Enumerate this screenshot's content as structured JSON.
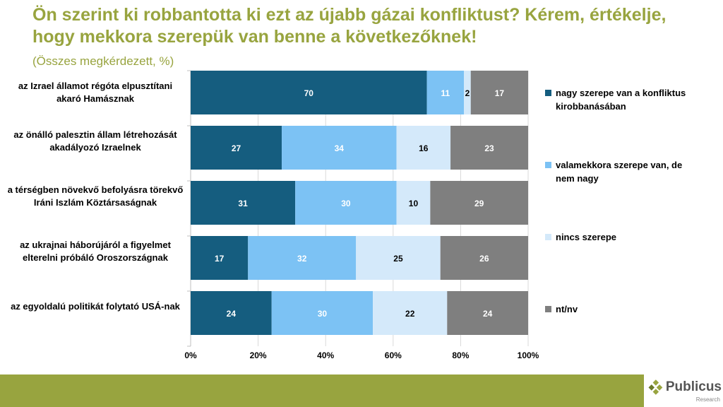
{
  "title": "Ön szerint ki robbantotta ki ezt az újabb gázai konfliktust? Kérem, értékelje, hogy mekkora szerepük van benne a következőknek!",
  "subtitle": "(Összes megkérdezett, %)",
  "chart_data": {
    "type": "bar",
    "stacked": true,
    "orientation": "horizontal",
    "categories": [
      "az Izrael államot régóta elpusztítani akaró Hamásznak",
      "az önálló palesztin állam létrehozását akadályozó Izraelnek",
      "a térségben növekvő befolyásra törekvő Iráni Iszlám Köztársaságnak",
      "az ukrajnai háborújáról a figyelmet elterelni próbáló Oroszországnak",
      "az egyoldalú politikát folytató USÁ-nak"
    ],
    "series": [
      {
        "name": "nagy szerepe van a konfliktus kirobbanásában",
        "color": "#155d7f",
        "label_color": "#ffffff",
        "values": [
          70,
          27,
          31,
          17,
          24
        ]
      },
      {
        "name": "valamekkora szerepe van, de nem nagy",
        "color": "#7cc2f4",
        "label_color": "#ffffff",
        "values": [
          11,
          34,
          30,
          32,
          30
        ]
      },
      {
        "name": "nincs szerepe",
        "color": "#d4e9fa",
        "label_color": "#000000",
        "values": [
          2,
          16,
          10,
          25,
          22
        ]
      },
      {
        "name": "nt/nv",
        "color": "#7f7f7f",
        "label_color": "#ffffff",
        "values": [
          17,
          23,
          29,
          26,
          24
        ]
      }
    ],
    "xticks": [
      "0%",
      "20%",
      "40%",
      "60%",
      "80%",
      "100%"
    ],
    "xlim": [
      0,
      100
    ],
    "legend": "right",
    "grid": true
  },
  "logo": {
    "name": "Publicus",
    "sub": "Research"
  }
}
